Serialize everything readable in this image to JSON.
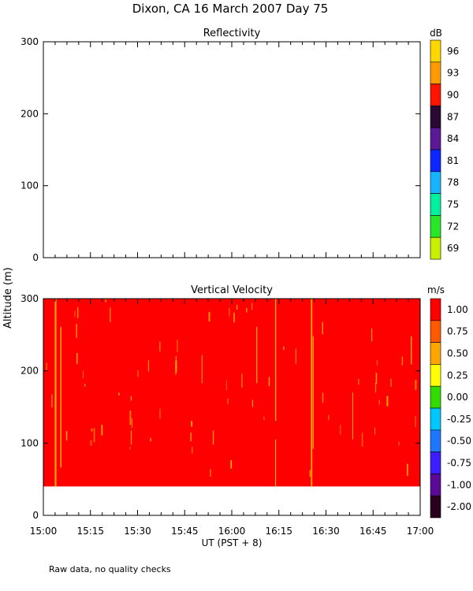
{
  "figure": {
    "title": "Dixon, CA 16 March 2007  Day  75",
    "ylabel": "Altitude (m)",
    "xlabel": "UT  (PST + 8)",
    "note": "Raw data, no quality checks",
    "x_ticks": [
      "15:00",
      "15:15",
      "15:30",
      "15:45",
      "16:00",
      "16:15",
      "16:30",
      "16:45",
      "17:00"
    ]
  },
  "chart_data": [
    {
      "type": "heatmap",
      "title": "Reflectivity",
      "ylim": [
        0,
        300
      ],
      "y_ticks": [
        0,
        100,
        200,
        300
      ],
      "xlim": [
        "15:00",
        "17:00"
      ],
      "data": "none displayed",
      "colorbar": {
        "unit": "dB",
        "ticks": [
          "96",
          "93",
          "90",
          "87",
          "84",
          "81",
          "78",
          "75",
          "72",
          "69"
        ],
        "colors": [
          "#ffd700",
          "#ff9a00",
          "#ff1400",
          "#2a0a32",
          "#5a1a96",
          "#0a28ff",
          "#19b4ff",
          "#00f0a0",
          "#28e628",
          "#c8f000"
        ]
      }
    },
    {
      "type": "heatmap",
      "title": "Vertical Velocity",
      "ylim": [
        0,
        300
      ],
      "y_ticks": [
        0,
        100,
        200,
        300
      ],
      "xlim": [
        "15:00",
        "17:00"
      ],
      "data_range_altitude": [
        40,
        300
      ],
      "dominant_color": "#ff0000",
      "streak_color": "#ffc800",
      "colorbar": {
        "unit": "m/s",
        "ticks": [
          "1.00",
          "0.75",
          "0.50",
          "0.25",
          "0.00",
          "-0.25",
          "-0.50",
          "-0.75",
          "-1.00",
          "-2.00"
        ],
        "colors": [
          "#ff0000",
          "#ff5a00",
          "#ffa500",
          "#ffff00",
          "#32dc00",
          "#00c8ff",
          "#1e78ff",
          "#3c1eff",
          "#5a0a96",
          "#28001e"
        ]
      }
    }
  ]
}
